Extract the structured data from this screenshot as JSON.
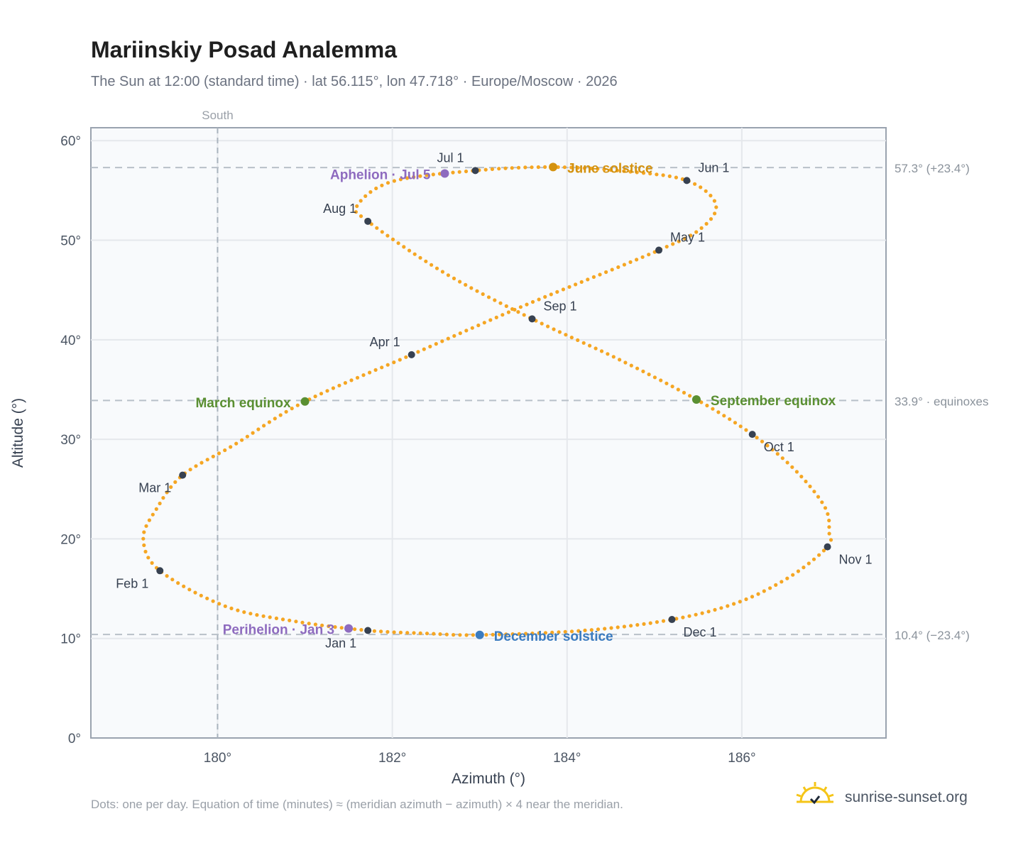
{
  "title": "Mariinskiy Posad Analemma",
  "subtitle": "The Sun at 12:00 (standard time) · lat 56.115°, lon 47.718° · Europe/Moscow · 2026",
  "footnote": "Dots: one per day. Equation of time (minutes) ≈ (meridian azimuth − azimuth) × 4 near the meridian.",
  "brand": "sunrise-sunset.org",
  "colors": {
    "curve": "#f5a623",
    "month": "#374151",
    "june": "#d4920f",
    "december": "#3b7bbf",
    "equinox": "#5a8f32",
    "apsis": "#8e6bbf"
  },
  "chart_data": {
    "type": "scatter",
    "xlabel": "Azimuth (°)",
    "ylabel": "Altitude (°)",
    "xlim": [
      178.55,
      187.65
    ],
    "ylim": [
      0,
      61.3
    ],
    "xticks": [
      180,
      182,
      184,
      186
    ],
    "xtick_labels": [
      "180°",
      "182°",
      "184°",
      "186°"
    ],
    "yticks": [
      0,
      10,
      20,
      30,
      40,
      50,
      60
    ],
    "ytick_labels": [
      "0°",
      "10°",
      "20°",
      "30°",
      "40°",
      "50°",
      "60°"
    ],
    "grid": true,
    "south_line": {
      "azimuth": 180,
      "label": "South"
    },
    "ref_lines": [
      {
        "alt": 57.3,
        "label": "57.3° (+23.4°)"
      },
      {
        "alt": 33.9,
        "label": "33.9° · equinoxes"
      },
      {
        "alt": 10.4,
        "label": "10.4° (−23.4°)"
      }
    ],
    "month_points": [
      {
        "label": "Jan 1",
        "az": 181.72,
        "alt": 10.8,
        "anchor": "end",
        "dx": -16,
        "dy": 24
      },
      {
        "label": "Feb 1",
        "az": 179.34,
        "alt": 16.8,
        "anchor": "end",
        "dx": -16,
        "dy": 24
      },
      {
        "label": "Mar 1",
        "az": 179.6,
        "alt": 26.4,
        "anchor": "end",
        "dx": -16,
        "dy": 24
      },
      {
        "label": "Apr 1",
        "az": 182.22,
        "alt": 38.5,
        "anchor": "end",
        "dx": -16,
        "dy": -12
      },
      {
        "label": "May 1",
        "az": 185.05,
        "alt": 49.0,
        "anchor": "start",
        "dx": 16,
        "dy": -12
      },
      {
        "label": "Jun 1",
        "az": 185.37,
        "alt": 56.0,
        "anchor": "start",
        "dx": 16,
        "dy": -12
      },
      {
        "label": "Jul 1",
        "az": 182.95,
        "alt": 57.0,
        "anchor": "end",
        "dx": -16,
        "dy": -12
      },
      {
        "label": "Aug 1",
        "az": 181.72,
        "alt": 51.9,
        "anchor": "end",
        "dx": -16,
        "dy": -12
      },
      {
        "label": "Sep 1",
        "az": 183.6,
        "alt": 42.1,
        "anchor": "start",
        "dx": 16,
        "dy": -12
      },
      {
        "label": "Oct 1",
        "az": 186.12,
        "alt": 30.5,
        "anchor": "start",
        "dx": 16,
        "dy": 24
      },
      {
        "label": "Nov 1",
        "az": 186.98,
        "alt": 19.2,
        "anchor": "start",
        "dx": 16,
        "dy": 24
      },
      {
        "label": "Dec 1",
        "az": 185.2,
        "alt": 11.9,
        "anchor": "start",
        "dx": 16,
        "dy": 24
      }
    ],
    "events": [
      {
        "label": "June solstice",
        "az": 183.84,
        "alt": 57.35,
        "color": "june",
        "anchor": "start",
        "dx": 20,
        "dy": 8
      },
      {
        "label": "December solstice",
        "az": 183.0,
        "alt": 10.35,
        "color": "december",
        "anchor": "start",
        "dx": 20,
        "dy": 8
      },
      {
        "label": "March equinox",
        "az": 181.0,
        "alt": 33.8,
        "color": "equinox",
        "anchor": "end",
        "dx": -20,
        "dy": 8
      },
      {
        "label": "September equinox",
        "az": 185.48,
        "alt": 34.0,
        "color": "equinox",
        "anchor": "start",
        "dx": 20,
        "dy": 8
      },
      {
        "label": "Perihelion · Jan 3",
        "az": 181.5,
        "alt": 11.0,
        "color": "apsis",
        "anchor": "end",
        "dx": -20,
        "dy": 8
      },
      {
        "label": "Aphelion · Jul 5",
        "az": 182.6,
        "alt": 56.7,
        "color": "apsis",
        "anchor": "end",
        "dx": -20,
        "dy": 8
      }
    ],
    "daily_path": [
      [
        183.0,
        10.35
      ],
      [
        182.4,
        10.5
      ],
      [
        181.72,
        10.8
      ],
      [
        180.9,
        11.7
      ],
      [
        180.1,
        13.2
      ],
      [
        179.34,
        16.8
      ],
      [
        179.15,
        20.0
      ],
      [
        179.3,
        23.0
      ],
      [
        179.6,
        26.4
      ],
      [
        180.2,
        29.5
      ],
      [
        181.0,
        33.8
      ],
      [
        182.22,
        38.5
      ],
      [
        183.5,
        43.4
      ],
      [
        185.05,
        49.0
      ],
      [
        185.55,
        51.3
      ],
      [
        185.7,
        53.7
      ],
      [
        185.37,
        56.0
      ],
      [
        184.7,
        56.9
      ],
      [
        183.84,
        57.35
      ],
      [
        182.95,
        57.0
      ],
      [
        182.0,
        55.9
      ],
      [
        181.6,
        53.5
      ],
      [
        181.72,
        51.9
      ],
      [
        182.6,
        46.7
      ],
      [
        183.6,
        42.1
      ],
      [
        184.6,
        38.0
      ],
      [
        185.48,
        34.0
      ],
      [
        186.12,
        30.5
      ],
      [
        186.6,
        27.0
      ],
      [
        186.95,
        23.2
      ],
      [
        187.0,
        20.6
      ],
      [
        186.98,
        19.2
      ],
      [
        186.55,
        16.2
      ],
      [
        185.95,
        13.6
      ],
      [
        185.2,
        11.9
      ],
      [
        184.2,
        10.8
      ],
      [
        183.0,
        10.35
      ]
    ]
  }
}
